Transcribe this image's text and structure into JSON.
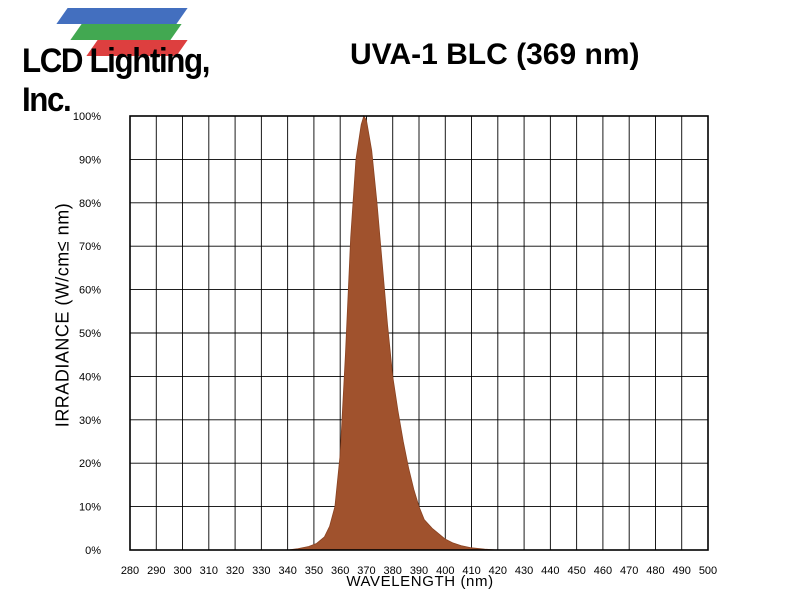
{
  "logo": {
    "text": "LCD Lighting, Inc.",
    "stripe_colors": [
      "#d92a2a",
      "#2e9e3e",
      "#2f5fb8"
    ]
  },
  "chart_data": {
    "type": "area",
    "title": "UVA-1 BLC (369 nm)",
    "xlabel": "WAVELENGTH (nm)",
    "ylabel": "IRRADIANCE (W/cm≤ nm)",
    "xlim": [
      280,
      500
    ],
    "ylim": [
      0,
      100
    ],
    "x_ticks": [
      280,
      290,
      300,
      310,
      320,
      330,
      340,
      350,
      360,
      370,
      380,
      390,
      400,
      410,
      420,
      430,
      440,
      450,
      460,
      470,
      480,
      490,
      500
    ],
    "y_ticks": [
      "0%",
      "10%",
      "20%",
      "30%",
      "40%",
      "50%",
      "60%",
      "70%",
      "80%",
      "90%",
      "100%"
    ],
    "grid": true,
    "fill_color": "#a0522d",
    "series": [
      {
        "x": [
          280,
          340,
          344,
          348,
          351,
          354,
          356,
          358,
          360,
          362,
          364,
          366,
          368,
          369,
          370,
          372,
          374,
          376,
          378,
          380,
          382,
          384,
          386,
          388,
          390,
          392,
          395,
          398,
          400,
          403,
          406,
          410,
          415,
          420,
          500
        ],
        "y": [
          0,
          0,
          0.3,
          0.8,
          1.5,
          3,
          5.5,
          10,
          22,
          45,
          72,
          90,
          98,
          100,
          99,
          92,
          80,
          66,
          52,
          40,
          32,
          25,
          19,
          14,
          10,
          7,
          5,
          3.5,
          2.5,
          1.6,
          1,
          0.5,
          0.2,
          0,
          0
        ]
      }
    ]
  }
}
